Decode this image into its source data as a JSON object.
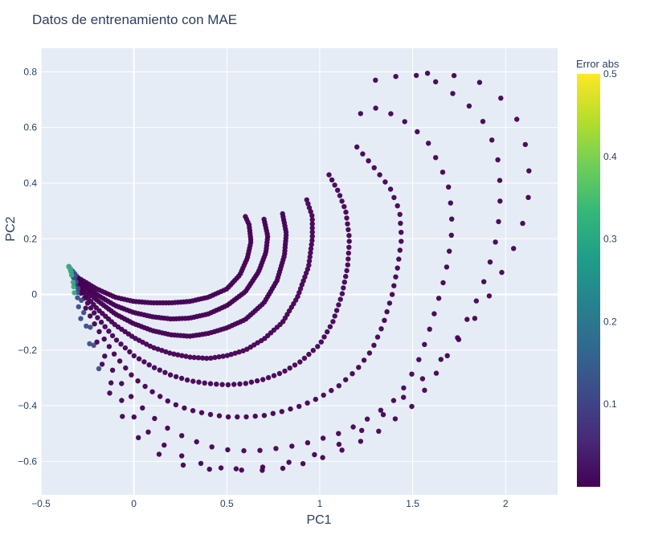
{
  "chart_data": {
    "type": "scatter",
    "title": "Datos de entrenamiento con MAE",
    "xlabel": "PC1",
    "ylabel": "PC2",
    "xlim": [
      -0.5,
      2.28
    ],
    "ylim": [
      -0.72,
      0.885
    ],
    "xticks": [
      -0.5,
      0,
      0.5,
      1,
      1.5,
      2
    ],
    "xtick_labels": [
      "−0.5",
      "0",
      "0.5",
      "1",
      "1.5",
      "2"
    ],
    "yticks": [
      -0.6,
      -0.4,
      -0.2,
      0,
      0.2,
      0.4,
      0.6,
      0.8
    ],
    "ytick_labels": [
      "−0.6",
      "−0.4",
      "−0.2",
      "0",
      "0.2",
      "0.4",
      "0.6",
      "0.8"
    ],
    "grid": true,
    "colorbar": {
      "title": "Error abs",
      "colorscale": "Viridis",
      "range": [
        0.0,
        0.5
      ],
      "ticks": [
        0.1,
        0.2,
        0.3,
        0.4,
        0.5
      ],
      "tick_labels": [
        "0.1",
        "0.2",
        "0.3",
        "0.4",
        "0.5"
      ]
    },
    "marker_color_typical": "#440154",
    "series": [
      {
        "points": [
          [
            -0.35,
            0.1
          ],
          [
            -0.3,
            0.06
          ],
          [
            -0.2,
            0.02
          ],
          [
            -0.1,
            -0.01
          ],
          [
            0.0,
            -0.025
          ],
          [
            0.1,
            -0.03
          ],
          [
            0.2,
            -0.03
          ],
          [
            0.3,
            -0.025
          ],
          [
            0.4,
            -0.01
          ],
          [
            0.5,
            0.02
          ],
          [
            0.57,
            0.07
          ],
          [
            0.61,
            0.13
          ],
          [
            0.63,
            0.19
          ],
          [
            0.62,
            0.25
          ],
          [
            0.6,
            0.28
          ]
        ],
        "n": 85
      },
      {
        "points": [
          [
            -0.35,
            0.1
          ],
          [
            -0.3,
            0.05
          ],
          [
            -0.2,
            0.0
          ],
          [
            -0.1,
            -0.04
          ],
          [
            0.0,
            -0.065
          ],
          [
            0.1,
            -0.08
          ],
          [
            0.2,
            -0.088
          ],
          [
            0.3,
            -0.085
          ],
          [
            0.4,
            -0.07
          ],
          [
            0.5,
            -0.04
          ],
          [
            0.6,
            0.01
          ],
          [
            0.67,
            0.08
          ],
          [
            0.71,
            0.15
          ],
          [
            0.72,
            0.21
          ],
          [
            0.7,
            0.27
          ]
        ],
        "n": 95
      },
      {
        "points": [
          [
            -0.35,
            0.1
          ],
          [
            -0.3,
            0.04
          ],
          [
            -0.2,
            -0.02
          ],
          [
            -0.1,
            -0.07
          ],
          [
            0.0,
            -0.105
          ],
          [
            0.1,
            -0.13
          ],
          [
            0.2,
            -0.145
          ],
          [
            0.3,
            -0.15
          ],
          [
            0.4,
            -0.14
          ],
          [
            0.5,
            -0.12
          ],
          [
            0.6,
            -0.09
          ],
          [
            0.7,
            -0.03
          ],
          [
            0.77,
            0.05
          ],
          [
            0.81,
            0.14
          ],
          [
            0.82,
            0.22
          ],
          [
            0.8,
            0.29
          ]
        ],
        "n": 105
      },
      {
        "points": [
          [
            -0.35,
            0.1
          ],
          [
            -0.3,
            0.03
          ],
          [
            -0.2,
            -0.05
          ],
          [
            -0.1,
            -0.11
          ],
          [
            0.0,
            -0.155
          ],
          [
            0.1,
            -0.19
          ],
          [
            0.2,
            -0.212
          ],
          [
            0.3,
            -0.225
          ],
          [
            0.4,
            -0.23
          ],
          [
            0.5,
            -0.22
          ],
          [
            0.6,
            -0.2
          ],
          [
            0.7,
            -0.16
          ],
          [
            0.8,
            -0.1
          ],
          [
            0.88,
            -0.01
          ],
          [
            0.94,
            0.1
          ],
          [
            0.96,
            0.2
          ],
          [
            0.96,
            0.28
          ],
          [
            0.93,
            0.34
          ]
        ],
        "n": 95
      },
      {
        "points": [
          [
            -0.35,
            0.1
          ],
          [
            -0.3,
            0.02
          ],
          [
            -0.2,
            -0.08
          ],
          [
            -0.1,
            -0.16
          ],
          [
            0.0,
            -0.22
          ],
          [
            0.1,
            -0.26
          ],
          [
            0.2,
            -0.29
          ],
          [
            0.3,
            -0.31
          ],
          [
            0.4,
            -0.32
          ],
          [
            0.5,
            -0.325
          ],
          [
            0.6,
            -0.32
          ],
          [
            0.7,
            -0.305
          ],
          [
            0.8,
            -0.28
          ],
          [
            0.9,
            -0.24
          ],
          [
            1.0,
            -0.18
          ],
          [
            1.07,
            -0.1
          ],
          [
            1.12,
            0.0
          ],
          [
            1.15,
            0.1
          ],
          [
            1.16,
            0.2
          ],
          [
            1.14,
            0.3
          ],
          [
            1.1,
            0.37
          ],
          [
            1.05,
            0.43
          ]
        ],
        "n": 85
      },
      {
        "points": [
          [
            -0.35,
            0.1
          ],
          [
            -0.3,
            0.0
          ],
          [
            -0.2,
            -0.12
          ],
          [
            -0.1,
            -0.22
          ],
          [
            0.0,
            -0.3
          ],
          [
            0.1,
            -0.35
          ],
          [
            0.2,
            -0.39
          ],
          [
            0.3,
            -0.415
          ],
          [
            0.4,
            -0.43
          ],
          [
            0.5,
            -0.44
          ],
          [
            0.6,
            -0.44
          ],
          [
            0.7,
            -0.435
          ],
          [
            0.8,
            -0.42
          ],
          [
            0.9,
            -0.4
          ],
          [
            1.0,
            -0.37
          ],
          [
            1.1,
            -0.33
          ],
          [
            1.2,
            -0.27
          ],
          [
            1.28,
            -0.2
          ],
          [
            1.34,
            -0.11
          ],
          [
            1.39,
            0.0
          ],
          [
            1.42,
            0.1
          ],
          [
            1.44,
            0.2
          ],
          [
            1.43,
            0.3
          ],
          [
            1.38,
            0.38
          ],
          [
            1.3,
            0.45
          ],
          [
            1.2,
            0.53
          ]
        ],
        "n": 70
      },
      {
        "points": [
          [
            -0.35,
            0.1
          ],
          [
            -0.3,
            -0.02
          ],
          [
            -0.2,
            -0.17
          ],
          [
            -0.1,
            -0.29
          ],
          [
            0.0,
            -0.38
          ],
          [
            0.1,
            -0.44
          ],
          [
            0.2,
            -0.49
          ],
          [
            0.3,
            -0.52
          ],
          [
            0.4,
            -0.545
          ],
          [
            0.5,
            -0.558
          ],
          [
            0.6,
            -0.562
          ],
          [
            0.7,
            -0.56
          ],
          [
            0.8,
            -0.55
          ],
          [
            0.9,
            -0.54
          ],
          [
            1.0,
            -0.52
          ],
          [
            1.1,
            -0.5
          ],
          [
            1.2,
            -0.47
          ],
          [
            1.3,
            -0.43
          ],
          [
            1.4,
            -0.38
          ],
          [
            1.47,
            -0.32
          ],
          [
            1.53,
            -0.24
          ],
          [
            1.58,
            -0.15
          ],
          [
            1.62,
            -0.06
          ],
          [
            1.66,
            0.03
          ],
          [
            1.69,
            0.12
          ],
          [
            1.71,
            0.22
          ],
          [
            1.71,
            0.3
          ],
          [
            1.69,
            0.4
          ],
          [
            1.64,
            0.47
          ],
          [
            1.58,
            0.55
          ],
          [
            1.5,
            0.6
          ],
          [
            1.42,
            0.64
          ],
          [
            1.3,
            0.67
          ],
          [
            1.22,
            0.65
          ]
        ],
        "n": 50
      },
      {
        "points": [
          [
            -0.35,
            0.1
          ],
          [
            -0.3,
            -0.04
          ],
          [
            -0.2,
            -0.21
          ],
          [
            -0.1,
            -0.35
          ],
          [
            0.0,
            -0.44
          ],
          [
            0.1,
            -0.51
          ],
          [
            0.2,
            -0.56
          ],
          [
            0.3,
            -0.595
          ],
          [
            0.4,
            -0.615
          ],
          [
            0.5,
            -0.627
          ],
          [
            0.6,
            -0.632
          ],
          [
            0.7,
            -0.632
          ],
          [
            0.8,
            -0.625
          ],
          [
            0.9,
            -0.61
          ],
          [
            1.0,
            -0.59
          ],
          [
            1.1,
            -0.565
          ],
          [
            1.2,
            -0.535
          ],
          [
            1.3,
            -0.5
          ],
          [
            1.4,
            -0.45
          ],
          [
            1.5,
            -0.4
          ],
          [
            1.58,
            -0.33
          ],
          [
            1.66,
            -0.25
          ],
          [
            1.73,
            -0.17
          ],
          [
            1.8,
            -0.08
          ],
          [
            1.86,
            0.0
          ],
          [
            1.91,
            0.1
          ],
          [
            1.95,
            0.2
          ],
          [
            1.97,
            0.3
          ],
          [
            1.97,
            0.4
          ],
          [
            1.96,
            0.48
          ],
          [
            1.93,
            0.55
          ],
          [
            1.88,
            0.62
          ],
          [
            1.8,
            0.68
          ],
          [
            1.7,
            0.73
          ],
          [
            1.6,
            0.775
          ],
          [
            1.5,
            0.79
          ],
          [
            1.42,
            0.785
          ],
          [
            1.35,
            0.775
          ],
          [
            1.3,
            0.77
          ]
        ],
        "n": 45
      },
      {
        "points": [
          [
            -0.35,
            0.1
          ],
          [
            -0.3,
            -0.06
          ],
          [
            -0.2,
            -0.25
          ],
          [
            -0.1,
            -0.4
          ],
          [
            0.0,
            -0.5
          ],
          [
            0.1,
            -0.56
          ],
          [
            0.2,
            -0.6
          ],
          [
            0.3,
            -0.62
          ],
          [
            0.4,
            -0.628
          ],
          [
            0.5,
            -0.628
          ],
          [
            0.6,
            -0.625
          ],
          [
            0.7,
            -0.62
          ],
          [
            0.8,
            -0.61
          ],
          [
            0.9,
            -0.59
          ],
          [
            1.0,
            -0.57
          ],
          [
            1.1,
            -0.54
          ],
          [
            1.2,
            -0.5
          ],
          [
            1.3,
            -0.455
          ],
          [
            1.4,
            -0.4
          ],
          [
            1.5,
            -0.34
          ],
          [
            1.6,
            -0.27
          ],
          [
            1.7,
            -0.2
          ],
          [
            1.8,
            -0.12
          ],
          [
            1.9,
            -0.02
          ],
          [
            1.98,
            0.08
          ],
          [
            2.04,
            0.16
          ],
          [
            2.09,
            0.25
          ],
          [
            2.12,
            0.33
          ],
          [
            2.13,
            0.41
          ],
          [
            2.12,
            0.49
          ],
          [
            2.1,
            0.56
          ],
          [
            2.06,
            0.63
          ],
          [
            2.0,
            0.69
          ],
          [
            1.9,
            0.75
          ],
          [
            1.8,
            0.78
          ],
          [
            1.68,
            0.79
          ],
          [
            1.58,
            0.795
          ]
        ],
        "n": 35
      }
    ]
  }
}
